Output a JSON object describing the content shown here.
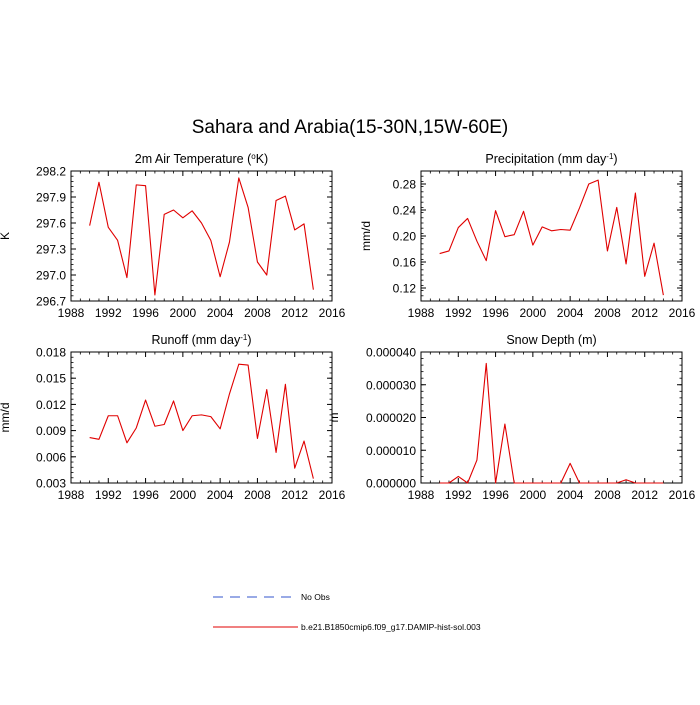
{
  "figure": {
    "title": "Sahara and Arabia(15-30N,15W-60E)"
  },
  "legend": {
    "items": [
      {
        "label": "No Obs",
        "color": "#3355cc",
        "dashed": true
      },
      {
        "label": "b.e21.B1850cmip6.f09_g17.DAMIP-hist-sol.003",
        "color": "#e00000",
        "dashed": false
      }
    ]
  },
  "chart_data": [
    {
      "type": "line",
      "title_main": "2m Air Temperature (",
      "title_sup": "o",
      "title_end": "K)",
      "ylabel": "K",
      "xlabel": "",
      "xlim": [
        1988,
        2016
      ],
      "ylim": [
        296.7,
        298.2
      ],
      "xticks": [
        1988,
        1992,
        1996,
        2000,
        2004,
        2008,
        2012,
        2016
      ],
      "yticks": [
        "296.7",
        "297.0",
        "297.3",
        "297.6",
        "297.9",
        "298.2"
      ],
      "x": [
        1990,
        1991,
        1992,
        1993,
        1994,
        1995,
        1996,
        1997,
        1998,
        1999,
        2000,
        2001,
        2002,
        2003,
        2004,
        2005,
        2006,
        2007,
        2008,
        2009,
        2010,
        2011,
        2012,
        2013,
        2014
      ],
      "series": [
        {
          "color": "#e00000",
          "values": [
            297.57,
            298.07,
            297.55,
            297.4,
            296.97,
            298.04,
            298.03,
            296.77,
            297.7,
            297.75,
            297.66,
            297.74,
            297.6,
            297.4,
            296.98,
            297.38,
            298.12,
            297.78,
            297.15,
            297.0,
            297.86,
            297.91,
            297.52,
            297.59,
            296.83
          ]
        }
      ]
    },
    {
      "type": "line",
      "title_main": "Precipitation (mm day",
      "title_sup": "-1",
      "title_end": ")",
      "ylabel": "mm/d",
      "xlabel": "",
      "xlim": [
        1988,
        2016
      ],
      "ylim": [
        0.1,
        0.3
      ],
      "xticks": [
        1988,
        1992,
        1996,
        2000,
        2004,
        2008,
        2012,
        2016
      ],
      "yticks": [
        "0.12",
        "0.16",
        "0.20",
        "0.24",
        "0.28"
      ],
      "x": [
        1990,
        1991,
        1992,
        1993,
        1994,
        1995,
        1996,
        1997,
        1998,
        1999,
        2000,
        2001,
        2002,
        2003,
        2004,
        2005,
        2006,
        2007,
        2008,
        2009,
        2010,
        2011,
        2012,
        2013,
        2014
      ],
      "series": [
        {
          "color": "#e00000",
          "values": [
            0.173,
            0.177,
            0.213,
            0.227,
            0.192,
            0.162,
            0.239,
            0.199,
            0.202,
            0.238,
            0.186,
            0.214,
            0.208,
            0.21,
            0.209,
            0.243,
            0.28,
            0.286,
            0.177,
            0.244,
            0.157,
            0.266,
            0.138,
            0.189,
            0.109
          ]
        }
      ]
    },
    {
      "type": "line",
      "title_main": "Runoff (mm day",
      "title_sup": "-1",
      "title_end": ")",
      "ylabel": "mm/d",
      "xlabel": "",
      "xlim": [
        1988,
        2016
      ],
      "ylim": [
        0.003,
        0.018
      ],
      "xticks": [
        1988,
        1992,
        1996,
        2000,
        2004,
        2008,
        2012,
        2016
      ],
      "yticks": [
        "0.003",
        "0.006",
        "0.009",
        "0.012",
        "0.015",
        "0.018"
      ],
      "x": [
        1990,
        1991,
        1992,
        1993,
        1994,
        1995,
        1996,
        1997,
        1998,
        1999,
        2000,
        2001,
        2002,
        2003,
        2004,
        2005,
        2006,
        2007,
        2008,
        2009,
        2010,
        2011,
        2012,
        2013,
        2014
      ],
      "series": [
        {
          "color": "#e00000",
          "values": [
            0.0082,
            0.008,
            0.0107,
            0.0107,
            0.0076,
            0.0093,
            0.0125,
            0.0095,
            0.0097,
            0.0124,
            0.009,
            0.0107,
            0.0108,
            0.0106,
            0.0092,
            0.0132,
            0.0166,
            0.0165,
            0.0081,
            0.0137,
            0.0065,
            0.0143,
            0.0047,
            0.0078,
            0.0035
          ]
        }
      ]
    },
    {
      "type": "line",
      "title_main": "Snow Depth (m)",
      "title_sup": "",
      "title_end": "",
      "ylabel": "m",
      "xlabel": "",
      "xlim": [
        1988,
        2016
      ],
      "ylim": [
        0.0,
        4e-05
      ],
      "xticks": [
        1988,
        1992,
        1996,
        2000,
        2004,
        2008,
        2012,
        2016
      ],
      "yticks": [
        "0.000000",
        "0.000010",
        "0.000020",
        "0.000030",
        "0.000040"
      ],
      "x": [
        1990,
        1991,
        1992,
        1993,
        1994,
        1995,
        1996,
        1997,
        1998,
        1999,
        2000,
        2001,
        2002,
        2003,
        2004,
        2005,
        2006,
        2007,
        2008,
        2009,
        2010,
        2011,
        2012,
        2013,
        2014
      ],
      "series": [
        {
          "color": "#e00000",
          "values": [
            0.0,
            0.0,
            2e-06,
            0.0,
            7e-06,
            3.65e-05,
            0.0,
            1.8e-05,
            0.0,
            0.0,
            0.0,
            0.0,
            0.0,
            0.0,
            6e-06,
            0.0,
            0.0,
            0.0,
            0.0,
            0.0,
            1e-06,
            0.0,
            0.0,
            0.0,
            0.0
          ]
        }
      ]
    }
  ]
}
